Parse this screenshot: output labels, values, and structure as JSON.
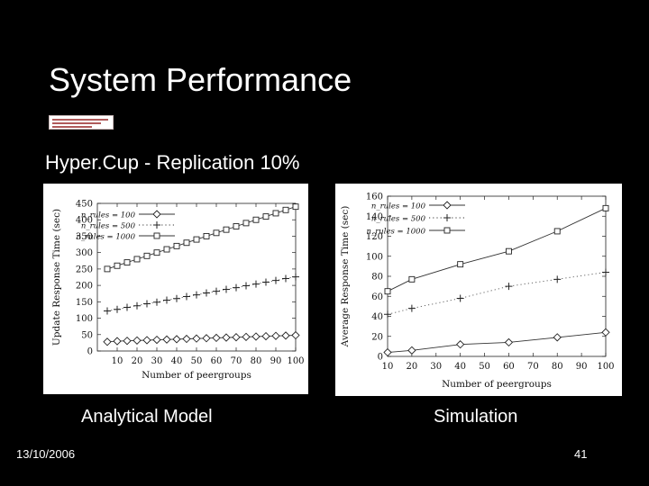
{
  "slide": {
    "title": "System Performance",
    "subtitle": "Hyper.Cup - Replication 10%",
    "caption_left": "Analytical Model",
    "caption_right": "Simulation",
    "date": "13/10/2006",
    "page_number": "41"
  },
  "chart_data": [
    {
      "type": "line",
      "title": "",
      "xlabel": "Number of peergroups",
      "ylabel": "Update Response Time (sec)",
      "xlim": [
        0,
        100
      ],
      "ylim": [
        0,
        450
      ],
      "xticks": [
        10,
        20,
        30,
        40,
        50,
        60,
        70,
        80,
        90,
        100
      ],
      "yticks": [
        0,
        50,
        100,
        150,
        200,
        250,
        300,
        350,
        400,
        450
      ],
      "grid": false,
      "legend_position": "top-left",
      "series": [
        {
          "name": "n_rules = 100",
          "marker": "diamond",
          "style": "solid",
          "x": [
            5,
            10,
            15,
            20,
            25,
            30,
            35,
            40,
            45,
            50,
            55,
            60,
            65,
            70,
            75,
            80,
            85,
            90,
            95,
            100
          ],
          "y": [
            28,
            30,
            31,
            32,
            33,
            34,
            35,
            36,
            37,
            38,
            39,
            40,
            41,
            42,
            43,
            44,
            45,
            46,
            47,
            48
          ]
        },
        {
          "name": "n_rules = 500",
          "marker": "plus",
          "style": "dotted",
          "x": [
            5,
            10,
            15,
            20,
            25,
            30,
            35,
            40,
            45,
            50,
            55,
            60,
            65,
            70,
            75,
            80,
            85,
            90,
            95,
            100
          ],
          "y": [
            122,
            127,
            133,
            138,
            144,
            149,
            155,
            160,
            166,
            171,
            177,
            182,
            188,
            193,
            199,
            204,
            210,
            215,
            221,
            226
          ]
        },
        {
          "name": "n_rules = 1000",
          "marker": "square",
          "style": "solid",
          "x": [
            5,
            10,
            15,
            20,
            25,
            30,
            35,
            40,
            45,
            50,
            55,
            60,
            65,
            70,
            75,
            80,
            85,
            90,
            95,
            100
          ],
          "y": [
            250,
            260,
            270,
            280,
            290,
            300,
            310,
            320,
            330,
            340,
            350,
            360,
            370,
            380,
            390,
            400,
            410,
            420,
            430,
            440
          ]
        }
      ]
    },
    {
      "type": "line",
      "title": "",
      "xlabel": "Number of peergroups",
      "ylabel": "Average Response Time (sec)",
      "xlim": [
        10,
        100
      ],
      "ylim": [
        0,
        160
      ],
      "xticks": [
        10,
        20,
        30,
        40,
        50,
        60,
        70,
        80,
        90,
        100
      ],
      "yticks": [
        0,
        20,
        40,
        60,
        80,
        100,
        120,
        140,
        160
      ],
      "grid": false,
      "legend_position": "top-left",
      "series": [
        {
          "name": "n_rules = 100",
          "marker": "diamond",
          "style": "solid",
          "x": [
            10,
            20,
            40,
            60,
            80,
            100
          ],
          "y": [
            4,
            6,
            12,
            14,
            19,
            24
          ]
        },
        {
          "name": "n_rules = 500",
          "marker": "plus",
          "style": "dotted",
          "x": [
            10,
            20,
            40,
            60,
            80,
            100
          ],
          "y": [
            42,
            48,
            58,
            70,
            77,
            84
          ]
        },
        {
          "name": "n_rules = 1000",
          "marker": "square",
          "style": "solid",
          "x": [
            10,
            20,
            40,
            60,
            80,
            100
          ],
          "y": [
            65,
            77,
            92,
            105,
            125,
            148
          ]
        }
      ]
    }
  ]
}
